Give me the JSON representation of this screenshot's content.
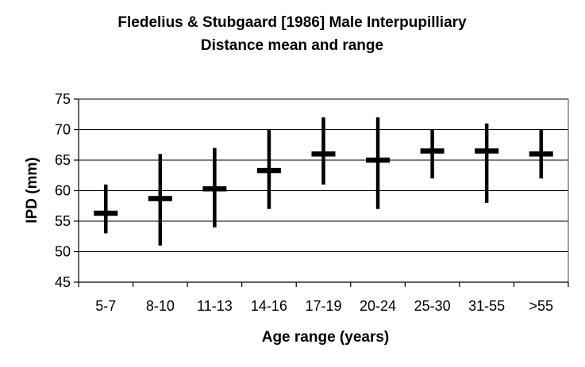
{
  "chart_data": {
    "type": "scatter",
    "title_lines": [
      "Fledelius & Stubgaard [1986] Male Interpupilliary",
      "Distance mean and range"
    ],
    "xlabel": "Age range (years)",
    "ylabel": "IPD (mm)",
    "categories": [
      "5-7",
      "8-10",
      "11-13",
      "14-16",
      "17-19",
      "20-24",
      "25-30",
      "31-55",
      ">55"
    ],
    "mean": [
      56.3,
      58.7,
      60.3,
      63.3,
      66.0,
      65.0,
      66.5,
      66.5,
      66.0
    ],
    "min": [
      53,
      51,
      54,
      57,
      61,
      57,
      62,
      58,
      62
    ],
    "max": [
      61,
      66,
      67,
      70,
      72,
      72,
      70,
      71,
      70
    ],
    "ylim": [
      45,
      75
    ],
    "yticks": [
      45,
      50,
      55,
      60,
      65,
      70,
      75
    ],
    "grid": true,
    "colors": {
      "mark": "#000000",
      "grid": "#000000",
      "frame": "#808080"
    }
  }
}
